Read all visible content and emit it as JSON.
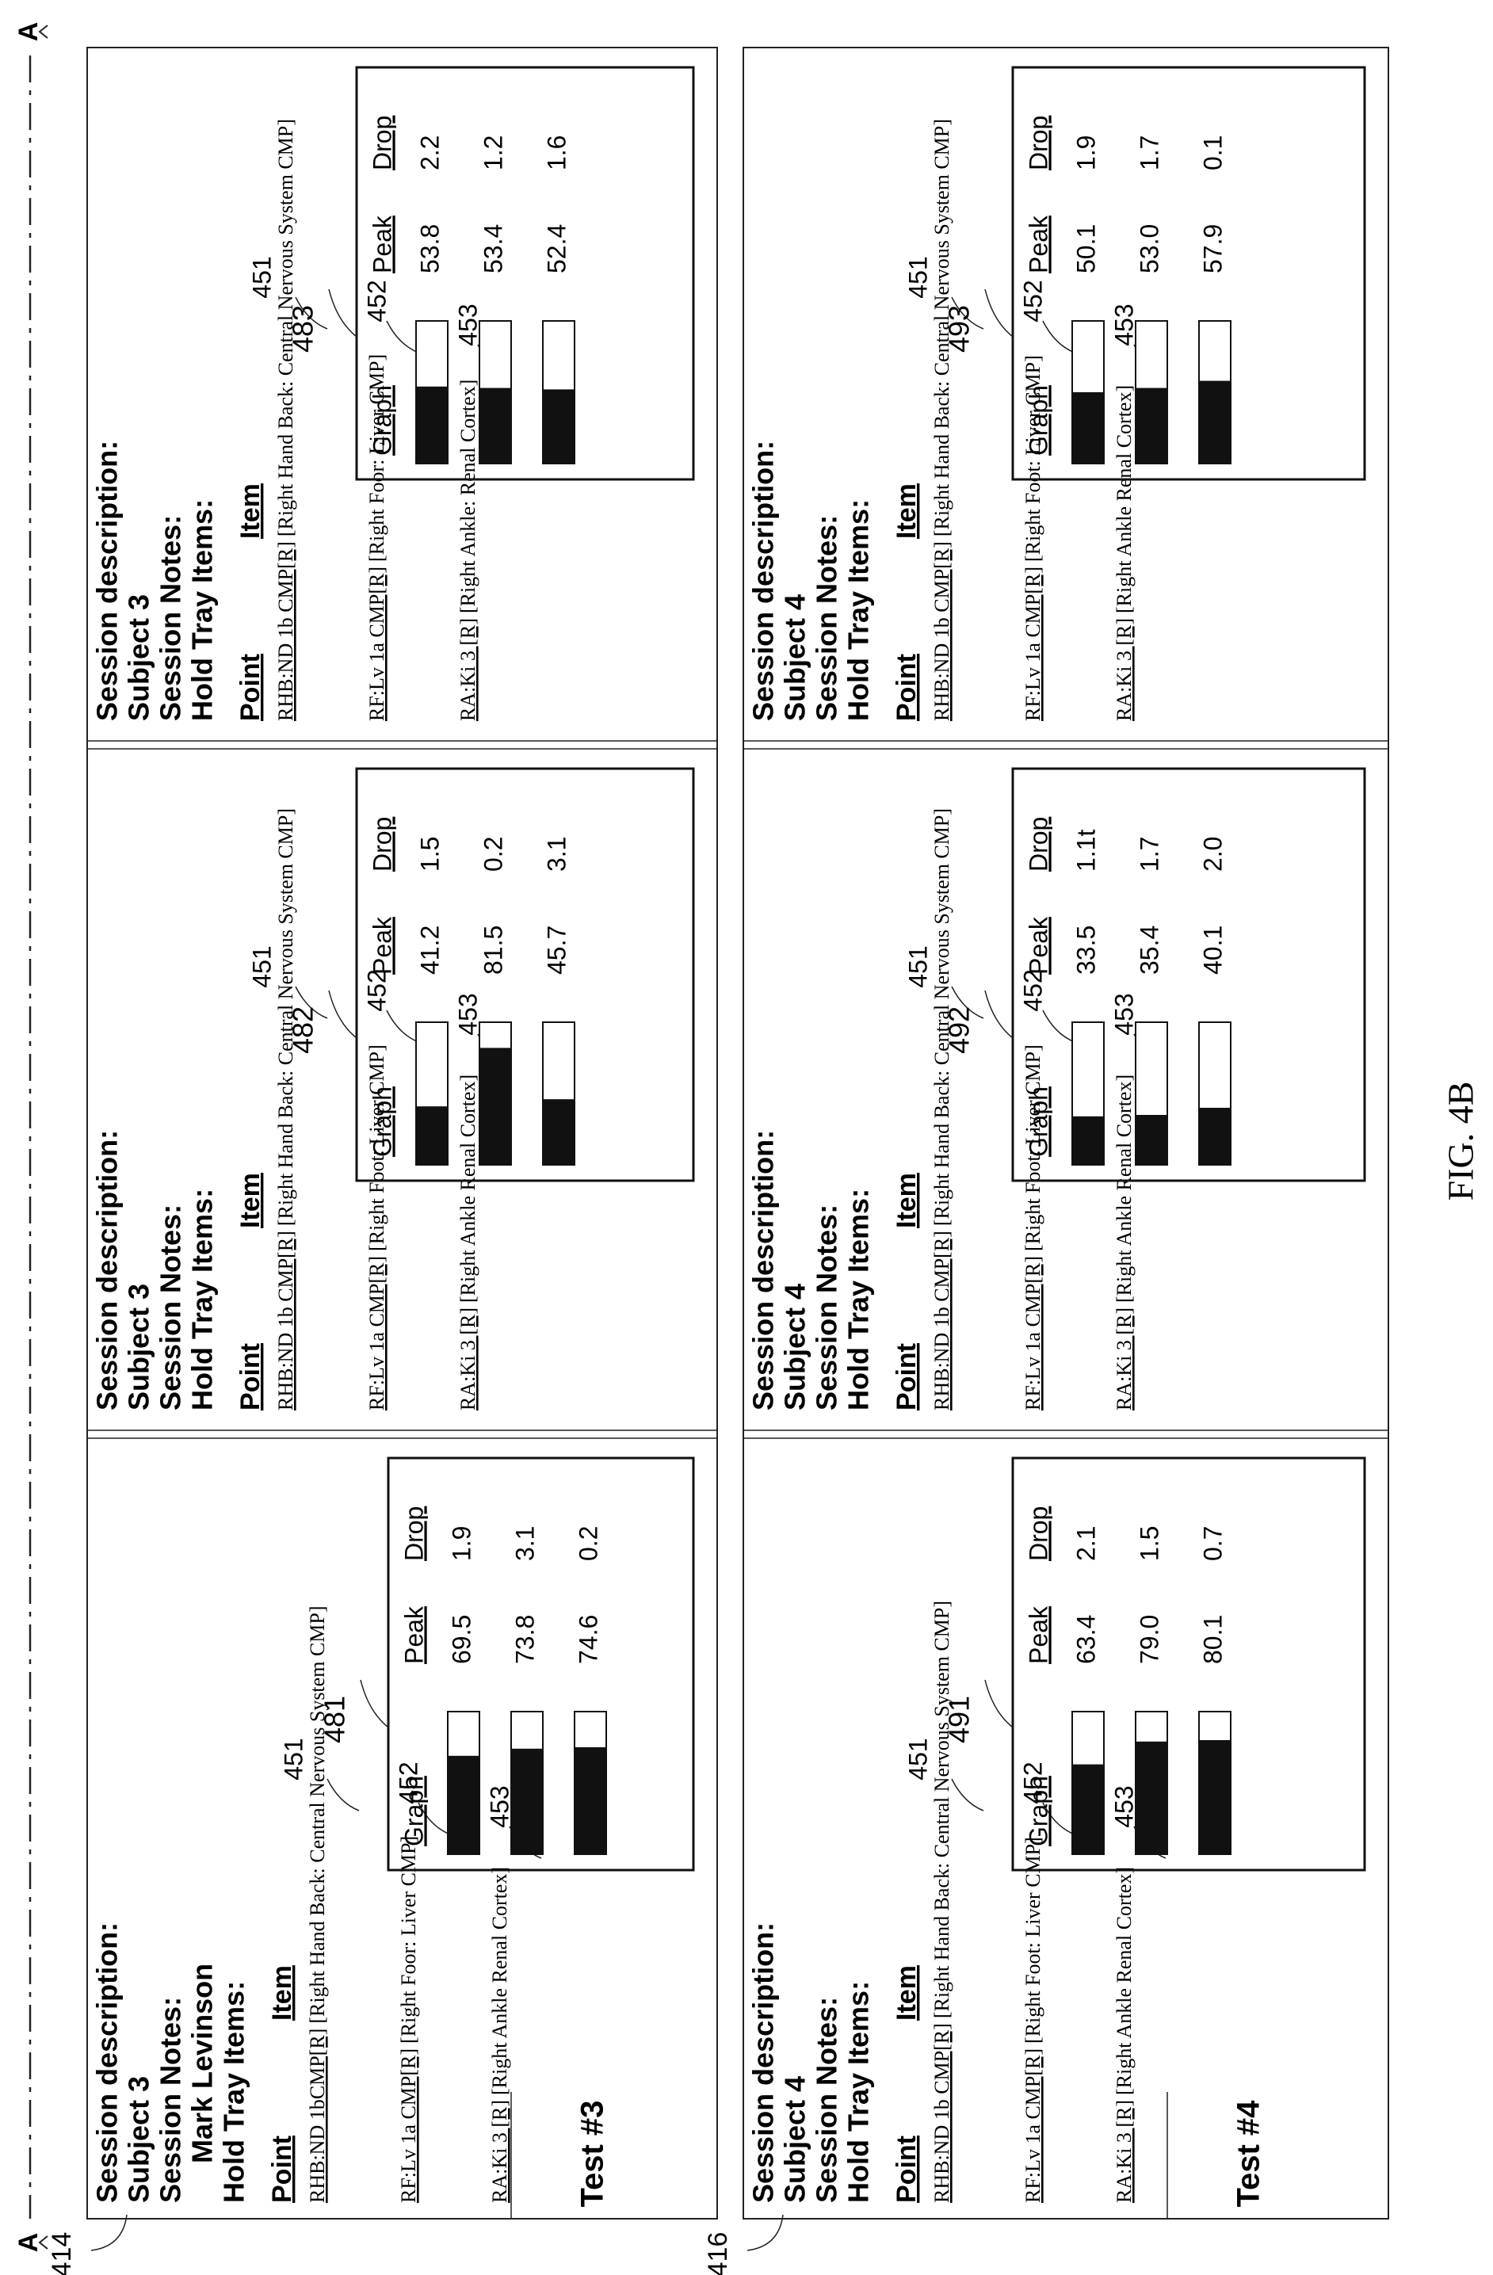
{
  "figure": {
    "caption": "FIG. 4B",
    "section_marker": "A",
    "section_marker_bottom": "A"
  },
  "labels": {
    "point": "Point",
    "item": "Item",
    "graph": "Graph",
    "peak": "Peak",
    "drop": "Drop",
    "session_description": "Session description:",
    "session_notes": "Session Notes:",
    "hold_tray_items": "Hold Tray Items:"
  },
  "tests": [
    {
      "ref": "414",
      "title": "Test #3",
      "panels": [
        {
          "subject": "Subject 3",
          "notes_value": "Mark Levinson",
          "graph_ref": "481",
          "rows": [
            {
              "ref": "451",
              "point": "RHB:ND 1bCMP[R]",
              "item_text": "[Right Hand Back: Central Nervous System CMP]",
              "peak": "69.5",
              "drop": "1.9",
              "fill": 0.69
            },
            {
              "ref": "452",
              "point": "RF:Lv 1a CMP[R]",
              "item_text": "[Right Foor: Liver CMP]",
              "peak": "73.8",
              "drop": "3.1",
              "fill": 0.74
            },
            {
              "ref": "453",
              "point": "RA:Ki 3 [R]",
              "item_text": "[Right Ankle Renal Cortex]",
              "peak": "74.6",
              "drop": "0.2",
              "fill": 0.75
            }
          ]
        },
        {
          "subject": "Subject 3",
          "notes_value": "",
          "graph_ref": "482",
          "rows": [
            {
              "ref": "451",
              "point": "RHB:ND 1b CMP[R]",
              "item_text": "[Right Hand Back: Central Nervous System CMP]",
              "peak": "41.2",
              "drop": "1.5",
              "fill": 0.41
            },
            {
              "ref": "452",
              "point": "RF:Lv 1a CMP[R]",
              "item_text": "[Right Foot: Liver CMP]",
              "peak": "81.5",
              "drop": "0.2",
              "fill": 0.82
            },
            {
              "ref": "453",
              "point": "RA:Ki 3 [R]",
              "item_text": "[Right Ankle Renal Cortex]",
              "peak": "45.7",
              "drop": "3.1",
              "fill": 0.46
            }
          ]
        },
        {
          "subject": "Subject 3",
          "notes_value": "",
          "graph_ref": "483",
          "rows": [
            {
              "ref": "451",
              "point": "RHB:ND 1b CMP[R]",
              "item_text": "[Right Hand Back: Central Nervous System CMP]",
              "peak": "53.8",
              "drop": "2.2",
              "fill": 0.54
            },
            {
              "ref": "452",
              "point": "RF:Lv 1a CMP[R]",
              "item_text": "[Right Foor: Liver CMP]",
              "peak": "53.4",
              "drop": "1.2",
              "fill": 0.53
            },
            {
              "ref": "453",
              "point": "RA:Ki 3 [R]",
              "item_text": "[Right Ankle: Renal Cortex]",
              "peak": "52.4",
              "drop": "1.6",
              "fill": 0.52
            }
          ]
        }
      ]
    },
    {
      "ref": "416",
      "title": "Test #4",
      "panels": [
        {
          "subject": "Subject 4",
          "notes_value": "",
          "graph_ref": "491",
          "rows": [
            {
              "ref": "451",
              "point": "RHB:ND 1b CMP[R]",
              "item_text": "[Right Hand Back: Central Nervous System CMP]",
              "peak": "63.4",
              "drop": "2.1",
              "fill": 0.63
            },
            {
              "ref": "452",
              "point": "RF:Lv 1a CMP[R]",
              "item_text": "[Right Foot: Liver CMP]",
              "peak": "79.0",
              "drop": "1.5",
              "fill": 0.79
            },
            {
              "ref": "453",
              "point": "RA:Ki 3 [R]",
              "item_text": "[Right Ankle Renal Cortex]",
              "peak": "80.1",
              "drop": "0.7",
              "fill": 0.8
            }
          ]
        },
        {
          "subject": "Subject 4",
          "notes_value": "",
          "graph_ref": "492",
          "rows": [
            {
              "ref": "451",
              "point": "RHB:ND 1b CMP[R]",
              "item_text": "[Right Hand Back: Central Nervous System CMP]",
              "peak": "33.5",
              "drop": "1.1t",
              "fill": 0.34
            },
            {
              "ref": "452",
              "point": "RF:Lv 1a CMP[R]",
              "item_text": "[Right Foot: Liver CMP]",
              "peak": "35.4",
              "drop": "1.7",
              "fill": 0.35
            },
            {
              "ref": "453",
              "point": "RA:Ki 3 [R]",
              "item_text": "[Right Ankle Renal Cortex]",
              "peak": "40.1",
              "drop": "2.0",
              "fill": 0.4
            }
          ]
        },
        {
          "subject": "Subject 4",
          "notes_value": "",
          "graph_ref": "493",
          "rows": [
            {
              "ref": "451",
              "point": "RHB:ND 1b CMP[R]",
              "item_text": "[Right Hand Back: Central Nervous System CMP]",
              "peak": "50.1",
              "drop": "1.9",
              "fill": 0.5
            },
            {
              "ref": "452",
              "point": "RF:Lv 1a CMP[R]",
              "item_text": "[Right Foot: Liver CMP]",
              "peak": "53.0",
              "drop": "1.7",
              "fill": 0.53
            },
            {
              "ref": "453",
              "point": "RA:Ki 3 [R]",
              "item_text": "[Right Ankle Renal Cortex]",
              "peak": "57.9",
              "drop": "0.1",
              "fill": 0.58
            }
          ]
        }
      ]
    }
  ]
}
